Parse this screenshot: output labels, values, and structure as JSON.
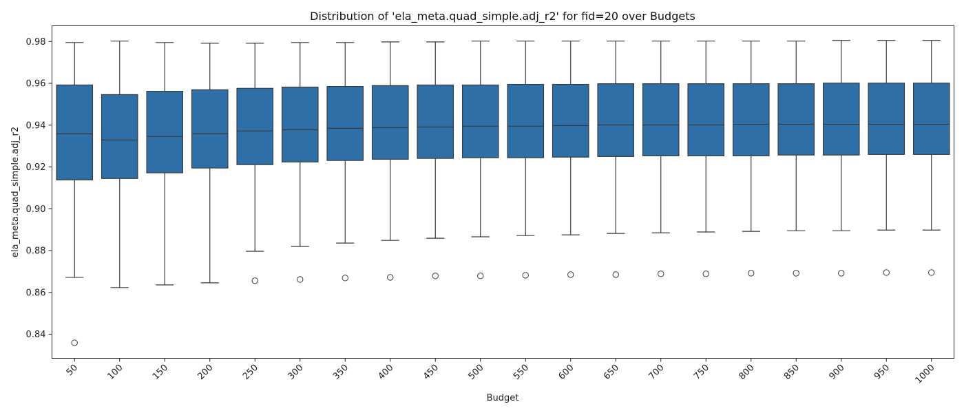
{
  "chart_data": {
    "type": "box",
    "title": "Distribution of 'ela_meta.quad_simple.adj_r2' for fid=20 over Budgets",
    "xlabel": "Budget",
    "ylabel": "ela_meta.quad_simple.adj_r2",
    "ylim": [
      0.8285,
      0.9875
    ],
    "yticks": [
      "0.84",
      "0.86",
      "0.88",
      "0.90",
      "0.92",
      "0.94",
      "0.96",
      "0.98"
    ],
    "grid": false,
    "box_color": "#2f6fa7",
    "line_color": "#3a3a3a",
    "categories": [
      "50",
      "100",
      "150",
      "200",
      "250",
      "300",
      "350",
      "400",
      "450",
      "500",
      "550",
      "600",
      "650",
      "700",
      "750",
      "800",
      "850",
      "900",
      "950",
      "1000"
    ],
    "boxes": [
      {
        "whislo": 0.8672,
        "q1": 0.9138,
        "med": 0.9359,
        "q3": 0.9592,
        "whishi": 0.9795,
        "fliers": [
          0.8359
        ]
      },
      {
        "whislo": 0.8623,
        "q1": 0.9145,
        "med": 0.9329,
        "q3": 0.9546,
        "whishi": 0.9802,
        "fliers": []
      },
      {
        "whislo": 0.8636,
        "q1": 0.9172,
        "med": 0.9346,
        "q3": 0.9562,
        "whishi": 0.9795,
        "fliers": []
      },
      {
        "whislo": 0.8646,
        "q1": 0.9195,
        "med": 0.9359,
        "q3": 0.9569,
        "whishi": 0.9792,
        "fliers": []
      },
      {
        "whislo": 0.8797,
        "q1": 0.9211,
        "med": 0.9372,
        "q3": 0.9576,
        "whishi": 0.9792,
        "fliers": [
          0.8656
        ]
      },
      {
        "whislo": 0.882,
        "q1": 0.9224,
        "med": 0.9378,
        "q3": 0.9582,
        "whishi": 0.9795,
        "fliers": [
          0.8662
        ]
      },
      {
        "whislo": 0.8836,
        "q1": 0.9231,
        "med": 0.9385,
        "q3": 0.9585,
        "whishi": 0.9795,
        "fliers": [
          0.8669
        ]
      },
      {
        "whislo": 0.8849,
        "q1": 0.9237,
        "med": 0.9388,
        "q3": 0.9589,
        "whishi": 0.9798,
        "fliers": [
          0.8672
        ]
      },
      {
        "whislo": 0.8859,
        "q1": 0.9241,
        "med": 0.9391,
        "q3": 0.9592,
        "whishi": 0.9798,
        "fliers": [
          0.8679
        ]
      },
      {
        "whislo": 0.8866,
        "q1": 0.9244,
        "med": 0.9395,
        "q3": 0.9592,
        "whishi": 0.9802,
        "fliers": [
          0.8679
        ]
      },
      {
        "whislo": 0.8872,
        "q1": 0.9244,
        "med": 0.9395,
        "q3": 0.9595,
        "whishi": 0.9802,
        "fliers": [
          0.8682
        ]
      },
      {
        "whislo": 0.8875,
        "q1": 0.9247,
        "med": 0.9398,
        "q3": 0.9595,
        "whishi": 0.9802,
        "fliers": [
          0.8685
        ]
      },
      {
        "whislo": 0.8882,
        "q1": 0.925,
        "med": 0.9401,
        "q3": 0.9598,
        "whishi": 0.9802,
        "fliers": [
          0.8685
        ]
      },
      {
        "whislo": 0.8885,
        "q1": 0.9253,
        "med": 0.9401,
        "q3": 0.9598,
        "whishi": 0.9802,
        "fliers": [
          0.8689
        ]
      },
      {
        "whislo": 0.8889,
        "q1": 0.9253,
        "med": 0.9401,
        "q3": 0.9598,
        "whishi": 0.9802,
        "fliers": [
          0.8689
        ]
      },
      {
        "whislo": 0.8892,
        "q1": 0.9253,
        "med": 0.9404,
        "q3": 0.9598,
        "whishi": 0.9802,
        "fliers": [
          0.8692
        ]
      },
      {
        "whislo": 0.8895,
        "q1": 0.9257,
        "med": 0.9404,
        "q3": 0.9598,
        "whishi": 0.9802,
        "fliers": [
          0.8692
        ]
      },
      {
        "whislo": 0.8895,
        "q1": 0.9257,
        "med": 0.9404,
        "q3": 0.9601,
        "whishi": 0.9805,
        "fliers": [
          0.8692
        ]
      },
      {
        "whislo": 0.8898,
        "q1": 0.926,
        "med": 0.9404,
        "q3": 0.9601,
        "whishi": 0.9805,
        "fliers": [
          0.8695
        ]
      },
      {
        "whislo": 0.8898,
        "q1": 0.926,
        "med": 0.9404,
        "q3": 0.9601,
        "whishi": 0.9805,
        "fliers": [
          0.8695
        ]
      }
    ]
  }
}
